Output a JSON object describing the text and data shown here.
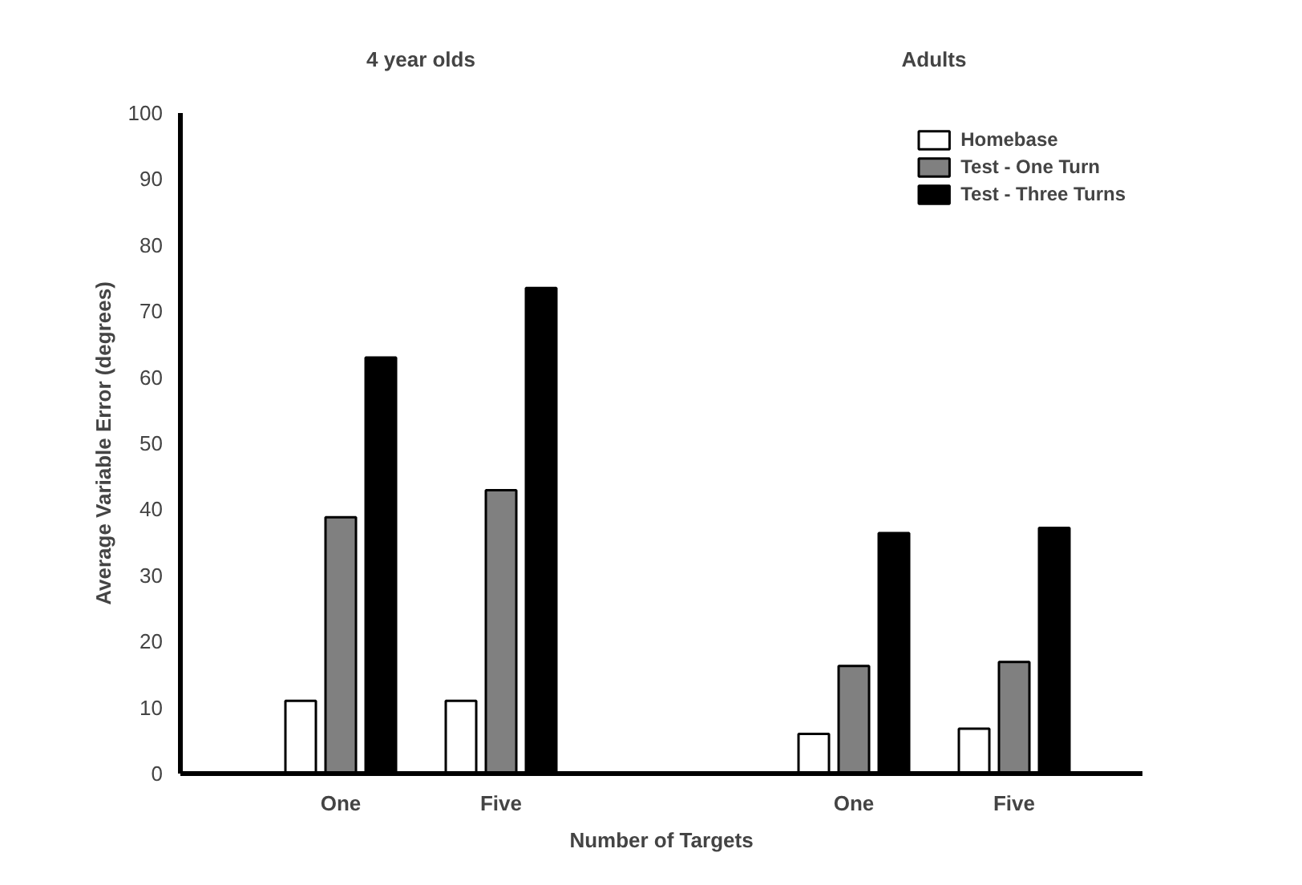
{
  "chart_data": {
    "type": "bar",
    "xlabel": "Number of Targets",
    "ylabel": "Average Variable Error (degrees)",
    "categories": [
      "One",
      "Five",
      "One",
      "Five"
    ],
    "annotations": [
      "4 year olds",
      "Adults"
    ],
    "series": [
      {
        "name": "Homebase",
        "color": "#ffffff",
        "values": [
          11,
          11,
          6,
          6.8
        ]
      },
      {
        "name": "Test - One Turn",
        "color": "#808080",
        "values": [
          38.8,
          42.9,
          16.3,
          16.9
        ]
      },
      {
        "name": "Test - Three Turns",
        "color": "#000000",
        "values": [
          63,
          73.5,
          36.4,
          37.2
        ]
      }
    ],
    "ylim": [
      0,
      100
    ],
    "yticks": [
      0,
      10,
      20,
      30,
      40,
      50,
      60,
      70,
      80,
      90,
      100
    ],
    "grid": false,
    "legend": "top right"
  }
}
